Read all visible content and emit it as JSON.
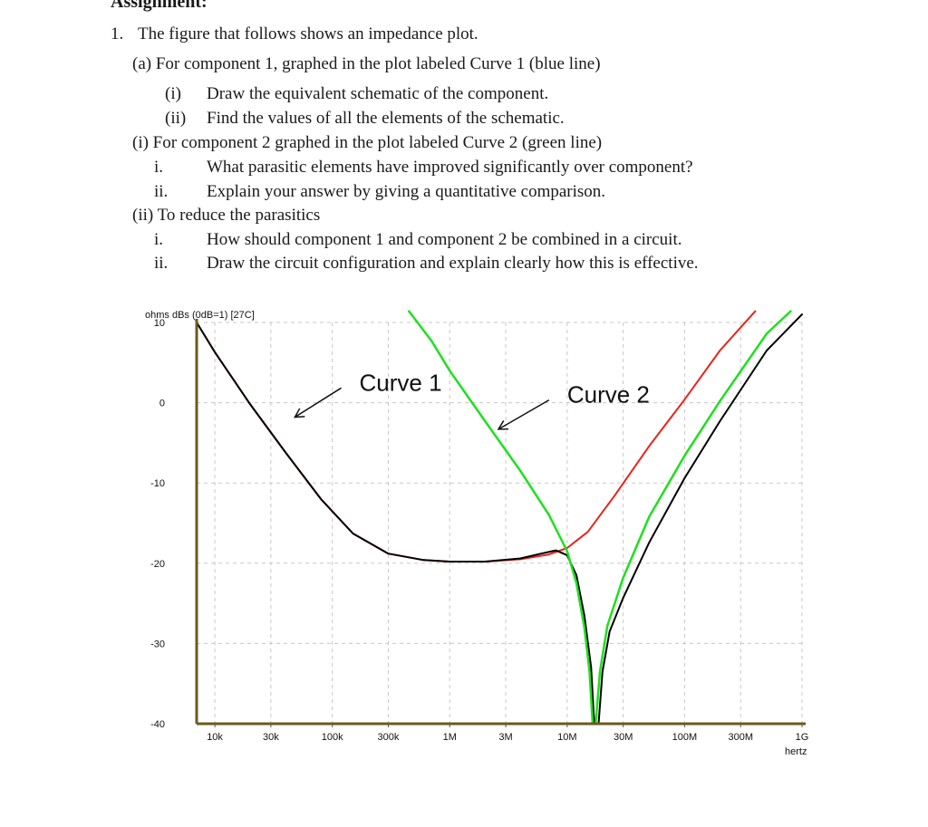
{
  "document": {
    "heading": "Assignment:",
    "question": {
      "number": "1.",
      "text": "The figure that follows shows an impedance plot.",
      "part_a": {
        "text": "(a) For component 1, graphed in the plot labeled Curve 1 (blue line)",
        "items": [
          {
            "marker": "(i)",
            "text": "Draw the equivalent schematic of the component."
          },
          {
            "marker": "(ii)",
            "text": "Find the values of all the elements of the schematic."
          }
        ]
      },
      "part_i": {
        "text": "(i) For component 2 graphed in the plot labeled Curve 2 (green line)",
        "items": [
          {
            "marker": "i.",
            "text": "What parasitic elements have improved significantly over component?"
          },
          {
            "marker": "ii.",
            "text": "Explain your answer by giving a quantitative comparison."
          }
        ]
      },
      "part_ii": {
        "text": "(ii) To reduce the parasitics",
        "items": [
          {
            "marker": "i.",
            "text": "How should component 1 and component 2 be combined in a circuit."
          },
          {
            "marker": "ii.",
            "text": "Draw the circuit configuration and explain clearly how this is effective."
          }
        ]
      }
    }
  },
  "chart_data": {
    "type": "line",
    "ylabel": "ohms dBs (0dB=1) [27C]",
    "xlabel": "hertz",
    "x_scale": "log",
    "xlim": [
      7000,
      1000000000
    ],
    "ylim": [
      -40,
      10
    ],
    "grid": true,
    "x_ticks": [
      {
        "value": 10000,
        "label": "10k"
      },
      {
        "value": 30000,
        "label": "30k"
      },
      {
        "value": 100000,
        "label": "100k"
      },
      {
        "value": 300000,
        "label": "300k"
      },
      {
        "value": 1000000,
        "label": "1M"
      },
      {
        "value": 3000000,
        "label": "3M"
      },
      {
        "value": 10000000,
        "label": "10M"
      },
      {
        "value": 30000000,
        "label": "30M"
      },
      {
        "value": 100000000,
        "label": "100M"
      },
      {
        "value": 300000000,
        "label": "300M"
      },
      {
        "value": 1000000000,
        "label": "1G"
      }
    ],
    "y_ticks": [
      {
        "value": 10,
        "label": "10"
      },
      {
        "value": 0,
        "label": "0"
      },
      {
        "value": -10,
        "label": "-10"
      },
      {
        "value": -20,
        "label": "-20"
      },
      {
        "value": -30,
        "label": "-30"
      },
      {
        "value": -40,
        "label": "-40"
      }
    ],
    "annotations": [
      {
        "text": "Curve 1",
        "x": 170000,
        "y": 1.5,
        "arrow_to": {
          "x": 48000,
          "y": -1.8
        }
      },
      {
        "text": "Curve 2",
        "x": 10000000,
        "y": 0,
        "arrow_to": {
          "x": 2600000,
          "y": -3.3
        }
      }
    ],
    "series": [
      {
        "color": "#e8231c",
        "width": 2,
        "points": [
          [
            7000,
            10
          ],
          [
            10000,
            6.3
          ],
          [
            20000,
            -0.2
          ],
          [
            40000,
            -6.2
          ],
          [
            80000,
            -12.0
          ],
          [
            150000,
            -16.3
          ],
          [
            300000,
            -18.8
          ],
          [
            600000,
            -19.6
          ],
          [
            1000000,
            -19.8
          ],
          [
            2000000,
            -19.8
          ],
          [
            4000000,
            -19.5
          ],
          [
            7000000,
            -18.9
          ],
          [
            10000000,
            -18.1
          ],
          [
            15000000,
            -16.1
          ],
          [
            25000000,
            -11.7
          ],
          [
            50000000,
            -5.4
          ],
          [
            100000000,
            0.4
          ],
          [
            200000000,
            6.5
          ],
          [
            400000000,
            11.4
          ]
        ]
      },
      {
        "color": "#000000",
        "width": 2,
        "points": [
          [
            7000,
            10
          ],
          [
            10000,
            6.3
          ],
          [
            20000,
            -0.2
          ],
          [
            40000,
            -6.2
          ],
          [
            80000,
            -12.0
          ],
          [
            150000,
            -16.3
          ],
          [
            300000,
            -18.8
          ],
          [
            600000,
            -19.6
          ],
          [
            1000000,
            -19.8
          ],
          [
            2000000,
            -19.8
          ],
          [
            4000000,
            -19.4
          ],
          [
            6000000,
            -18.8
          ],
          [
            8000000,
            -18.4
          ],
          [
            10000000,
            -19.0
          ],
          [
            12000000,
            -21.5
          ],
          [
            14000000,
            -26.5
          ],
          [
            16000000,
            -33.0
          ],
          [
            17000000,
            -40
          ],
          [
            18500000,
            -40
          ],
          [
            20000000,
            -33.5
          ],
          [
            23000000,
            -28.5
          ],
          [
            30000000,
            -24.3
          ],
          [
            50000000,
            -17.4
          ],
          [
            100000000,
            -9.4
          ],
          [
            200000000,
            -2.3
          ],
          [
            500000000,
            6.5
          ],
          [
            1000000000,
            11.0
          ]
        ]
      },
      {
        "color": "#1ee01e",
        "width": 2.5,
        "points": [
          [
            450000,
            11.4
          ],
          [
            700000,
            7.7
          ],
          [
            1000000,
            4.0
          ],
          [
            2000000,
            -2.3
          ],
          [
            4000000,
            -8.5
          ],
          [
            7000000,
            -14.0
          ],
          [
            10000000,
            -18.5
          ],
          [
            12000000,
            -22.5
          ],
          [
            14000000,
            -28.0
          ],
          [
            15500000,
            -33.5
          ],
          [
            16500000,
            -40
          ],
          [
            17500000,
            -40
          ],
          [
            19000000,
            -33.5
          ],
          [
            22000000,
            -27.8
          ],
          [
            30000000,
            -21.8
          ],
          [
            50000000,
            -14.2
          ],
          [
            100000000,
            -6.6
          ],
          [
            200000000,
            0.2
          ],
          [
            500000000,
            8.6
          ],
          [
            800000000,
            11.4
          ]
        ]
      }
    ]
  }
}
